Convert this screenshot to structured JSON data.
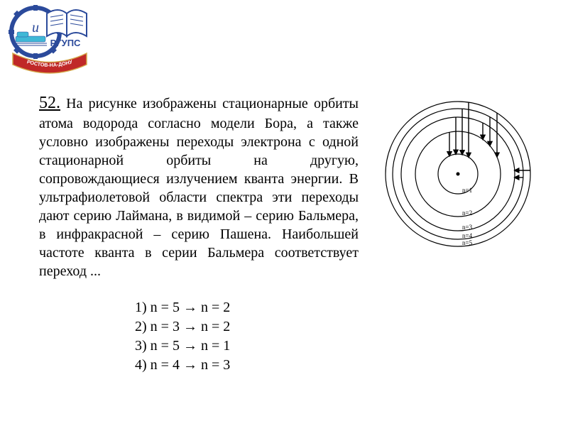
{
  "logo": {
    "inner_text": "и",
    "name": "РГУПС",
    "ribbon": "РОСТОВ-НА-ДОНУ",
    "colors": {
      "blue": "#2b4a9b",
      "red": "#c02828",
      "cyan": "#3fb8d6",
      "white": "#ffffff",
      "gold": "#d4a84a"
    }
  },
  "question": {
    "number": "52.",
    "text": "На рисунке изображены стационарные орбиты атома водорода согласно модели Бора, а также условно изображены переходы электрона с одной стационарной орбиты на другую, сопровождающиеся излучением кванта энергии. В ультрафиолетовой области спектра эти переходы дают серию Лаймана, в видимой – серию Бальмера, в инфракрасной – серию Пашена. Наибольшей частоте кванта в серии Бальмера соответствует переход ..."
  },
  "answers": [
    "1) n = 5 → n = 2",
    "2) n = 3 → n = 2",
    "3) n = 5 → n = 1",
    "4) n = 4 → n = 3"
  ],
  "diagram": {
    "orbit_radii": [
      28,
      60,
      80,
      92,
      102
    ],
    "orbit_labels": [
      "n=1",
      "n=2",
      "n=3",
      "n=4",
      "n=5"
    ],
    "stroke": "#000000",
    "stroke_width": 1.2,
    "center_dot_r": 2.5,
    "lyman_arrows_x": [
      -12,
      -3,
      6,
      15
    ],
    "balmer_arrows_x": [
      35,
      45,
      55
    ],
    "paschen_arrows": [
      {
        "y": 5,
        "from_r": 92
      },
      {
        "y": -5,
        "from_r": 102
      }
    ]
  }
}
